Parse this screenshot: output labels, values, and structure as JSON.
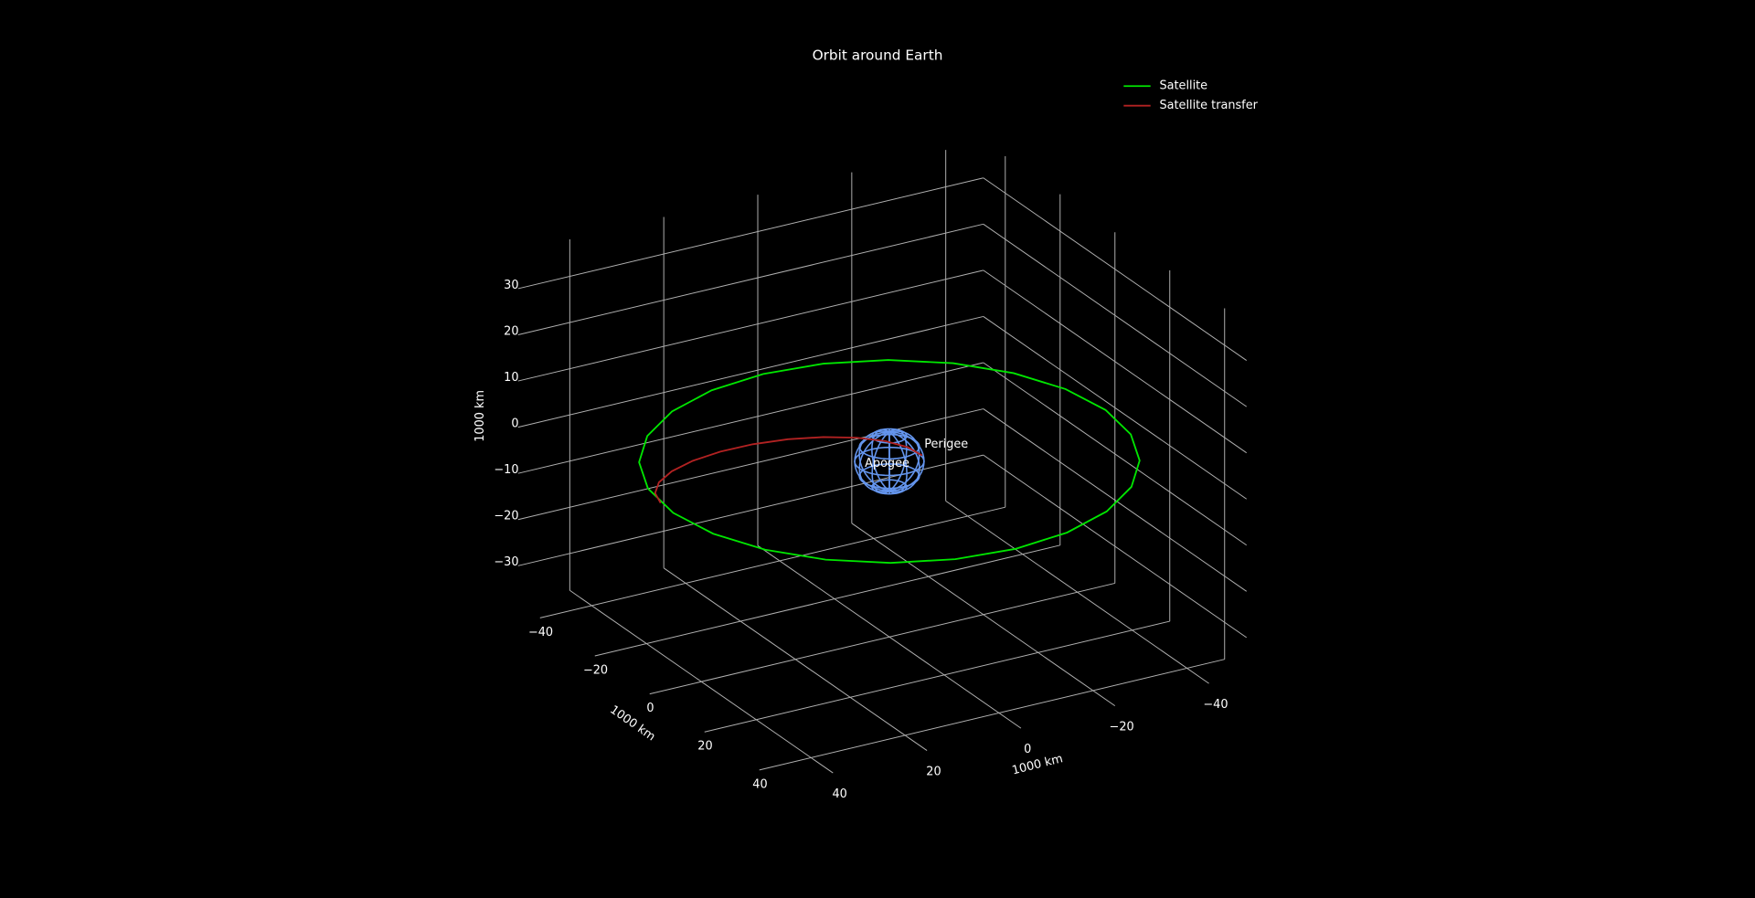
{
  "chart_data": {
    "type": "line3d",
    "title": "Orbit around Earth",
    "xlabel": "1000 km",
    "ylabel": "1000 km",
    "zlabel": "1000 km",
    "xlim": [
      -48,
      48
    ],
    "ylim": [
      -48,
      48
    ],
    "zlim": [
      -38,
      38
    ],
    "xticks": [
      {
        "value": -40,
        "label": "−40"
      },
      {
        "value": -20,
        "label": "−20"
      },
      0,
      20,
      40
    ],
    "yticks": [
      {
        "value": -40,
        "label": "−40"
      },
      {
        "value": -20,
        "label": "−20"
      },
      0,
      20,
      40
    ],
    "zticks": [
      {
        "value": -30,
        "label": "−30"
      },
      {
        "value": -20,
        "label": "−20"
      },
      {
        "value": -10,
        "label": "−10"
      },
      0,
      10,
      20,
      30
    ],
    "grid": true,
    "legend": "upper right",
    "series": [
      {
        "name": "Satellite",
        "color": "#00e600",
        "x": [
          46,
          44.43,
          39.84,
          32.53,
          23,
          11.9,
          0,
          -11.9,
          -23,
          -32.53,
          -39.84,
          -44.43,
          -46,
          -44.43,
          -39.84,
          -32.53,
          -23,
          -11.9,
          0,
          11.9,
          23,
          32.53,
          39.84,
          44.43,
          46
        ],
        "y": [
          0,
          11.9,
          23,
          32.53,
          39.84,
          44.43,
          46,
          44.43,
          39.84,
          32.53,
          23,
          11.9,
          0,
          -11.9,
          -23,
          -32.53,
          -39.84,
          -44.43,
          -46,
          -44.43,
          -39.84,
          -32.53,
          -23,
          -11.9,
          0
        ],
        "z": [
          0,
          0,
          0,
          0,
          0,
          0,
          0,
          0,
          0,
          0,
          0,
          0,
          0,
          0,
          0,
          0,
          0,
          0,
          0,
          0,
          0,
          0,
          0,
          0,
          0
        ]
      },
      {
        "name": "Satellite transfer",
        "color": "#b22222",
        "x": [
          -5.02,
          -9.4,
          -13.28,
          -16.41,
          -18.56,
          -19.6,
          -19.45,
          -18.12,
          -15.7,
          -12.35,
          -8.32,
          -3.86,
          0.72
        ],
        "y": [
          45.74,
          44.36,
          41.29,
          36.74,
          31.03,
          24.53,
          17.7,
          11.0,
          4.89,
          -0.22,
          -3.99,
          -6.14,
          -6.54
        ],
        "z": [
          0,
          0,
          0,
          0,
          0,
          0,
          0,
          0,
          0,
          0,
          0,
          0,
          0
        ]
      }
    ],
    "surface": {
      "radius": 6.371,
      "color": "#6495ed"
    },
    "annotations": [
      "Perigee",
      "Apogee"
    ]
  }
}
